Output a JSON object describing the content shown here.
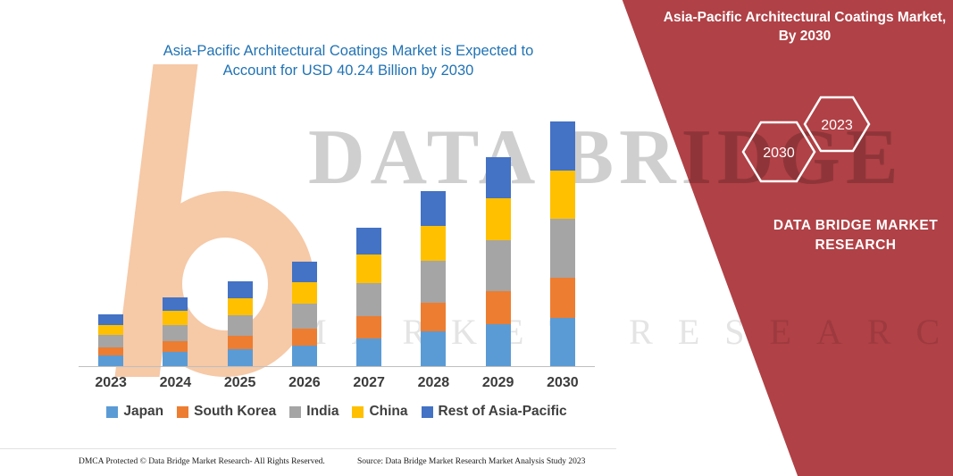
{
  "colors": {
    "banner_red": "#b04146",
    "title_blue": "#2173b4",
    "axis_gray": "#bfbfbf",
    "watermark_peach": "#f6c9a7"
  },
  "banner": {
    "title": "Asia-Pacific Architectural Coatings Market, By 2030",
    "hexagon_left": "2030",
    "hexagon_right": "2023",
    "brand": "DATA BRIDGE MARKET RESEARCH"
  },
  "watermark": {
    "line1": "DATA BRIDGE",
    "line2": "MARKET RESEARCH"
  },
  "footer": {
    "left": "DMCA Protected © Data Bridge Market Research-  All Rights Reserved.",
    "right": "Source: Data Bridge Market Research  Market Analysis Study 2023"
  },
  "chart_data": {
    "type": "bar",
    "stacked": true,
    "title": "Asia-Pacific Architectural Coatings Market is Expected to Account for USD 40.24 Billion by 2030",
    "categories": [
      "2023",
      "2024",
      "2025",
      "2026",
      "2027",
      "2028",
      "2029",
      "2030"
    ],
    "series": [
      {
        "name": "Japan",
        "color": "#5B9BD5",
        "values": [
          1.7,
          2.3,
          2.8,
          3.4,
          4.6,
          5.8,
          6.9,
          8.0
        ]
      },
      {
        "name": "South Korea",
        "color": "#ED7D31",
        "values": [
          1.4,
          1.8,
          2.2,
          2.8,
          3.6,
          4.6,
          5.5,
          6.5
        ]
      },
      {
        "name": "India",
        "color": "#A5A5A5",
        "values": [
          2.0,
          2.7,
          3.4,
          4.1,
          5.5,
          6.9,
          8.3,
          9.7
        ]
      },
      {
        "name": "China",
        "color": "#FFC000",
        "values": [
          1.7,
          2.3,
          2.8,
          3.5,
          4.6,
          5.8,
          6.9,
          8.0
        ]
      },
      {
        "name": "Rest of Asia-Pacific",
        "color": "#4472C4",
        "values": [
          1.7,
          2.2,
          2.8,
          3.4,
          4.5,
          5.7,
          6.8,
          8.04
        ]
      }
    ],
    "ylim": [
      0,
      40.24
    ],
    "xlabel": "",
    "ylabel": "",
    "grid": false,
    "legend_position": "bottom",
    "value_note": "USD Billion; 2030 total = 40.24"
  }
}
